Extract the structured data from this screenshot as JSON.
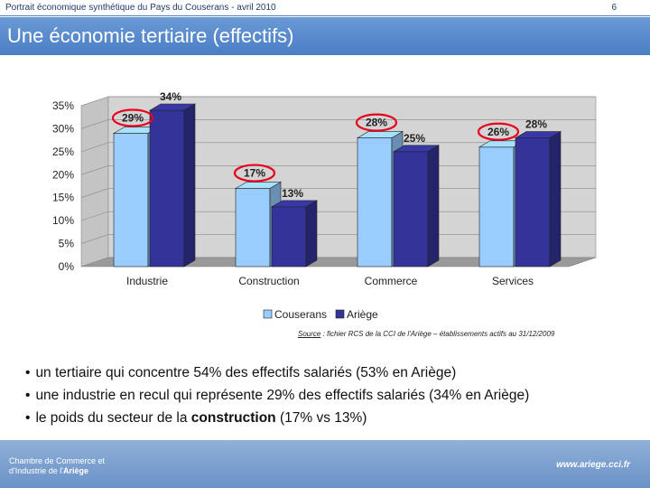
{
  "header": {
    "doc_title": "Portrait économique synthétique du Pays du Couserans - avril 2010",
    "page_number": "6"
  },
  "slide_title": "Une économie tertiaire (effectifs)",
  "chart_data": {
    "type": "bar",
    "categories": [
      "Industrie",
      "Construction",
      "Commerce",
      "Services"
    ],
    "series": [
      {
        "name": "Couserans",
        "values": [
          29,
          17,
          28,
          26
        ],
        "labels": [
          "29%",
          "17%",
          "28%",
          "26%"
        ],
        "color": "#99ccff",
        "highlighted": true
      },
      {
        "name": "Ariège",
        "values": [
          34,
          13,
          25,
          28
        ],
        "labels": [
          "34%",
          "13%",
          "25%",
          "28%"
        ],
        "color": "#333399"
      }
    ],
    "yticks": [
      "0%",
      "5%",
      "10%",
      "15%",
      "20%",
      "25%",
      "30%",
      "35%"
    ],
    "ylim": [
      0,
      35
    ],
    "grid": true,
    "legend_position": "bottom",
    "highlight_color": "#e8001c"
  },
  "source": {
    "label": "Source",
    "text": " : fichier RCS de la CCI de l'Ariège – établissements actifs au 31/12/2009"
  },
  "bullets": [
    {
      "parts": [
        {
          "t": "un tertiaire qui concentre 54% des effectifs salariés (53% en Ariège)",
          "b": false
        }
      ]
    },
    {
      "parts": [
        {
          "t": "une industrie en recul qui représente 29% des effectifs salariés (34% en Ariège)",
          "b": false
        }
      ]
    },
    {
      "parts": [
        {
          "t": "le poids du secteur de la ",
          "b": false
        },
        {
          "t": "construction",
          "b": true
        },
        {
          "t": " (17% vs 13%)",
          "b": false
        }
      ]
    }
  ],
  "footer": {
    "org_line1": "Chambre de Commerce et",
    "org_line2": "d'Industrie de l'",
    "org_bold": "Ariège",
    "url": "www.ariege.cci.fr"
  }
}
